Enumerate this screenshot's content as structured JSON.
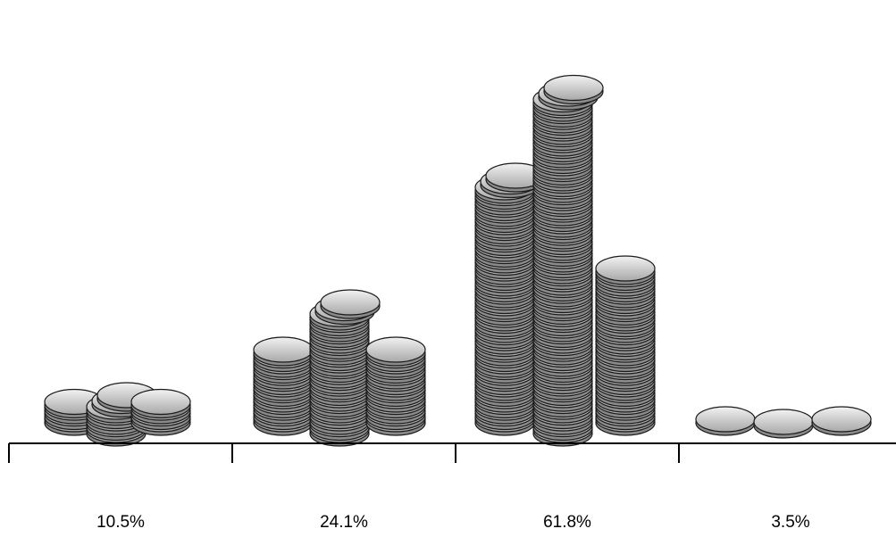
{
  "chart_data": {
    "type": "bar",
    "style": "stacked-coin pictograph",
    "categories": [
      "10.5%",
      "24.1%",
      "61.8%",
      "3.5%"
    ],
    "values": [
      10.5,
      24.1,
      61.8,
      3.5
    ],
    "title": "",
    "xlabel": "",
    "ylabel": "",
    "ylim": [
      0,
      70
    ],
    "grid": false,
    "legend": "none"
  },
  "colors": {
    "coin_face": "#d8d8d8",
    "coin_edge": "#8a8a8a",
    "coin_outline": "#1a1a1a",
    "axis": "#000000",
    "background": "#ffffff"
  }
}
